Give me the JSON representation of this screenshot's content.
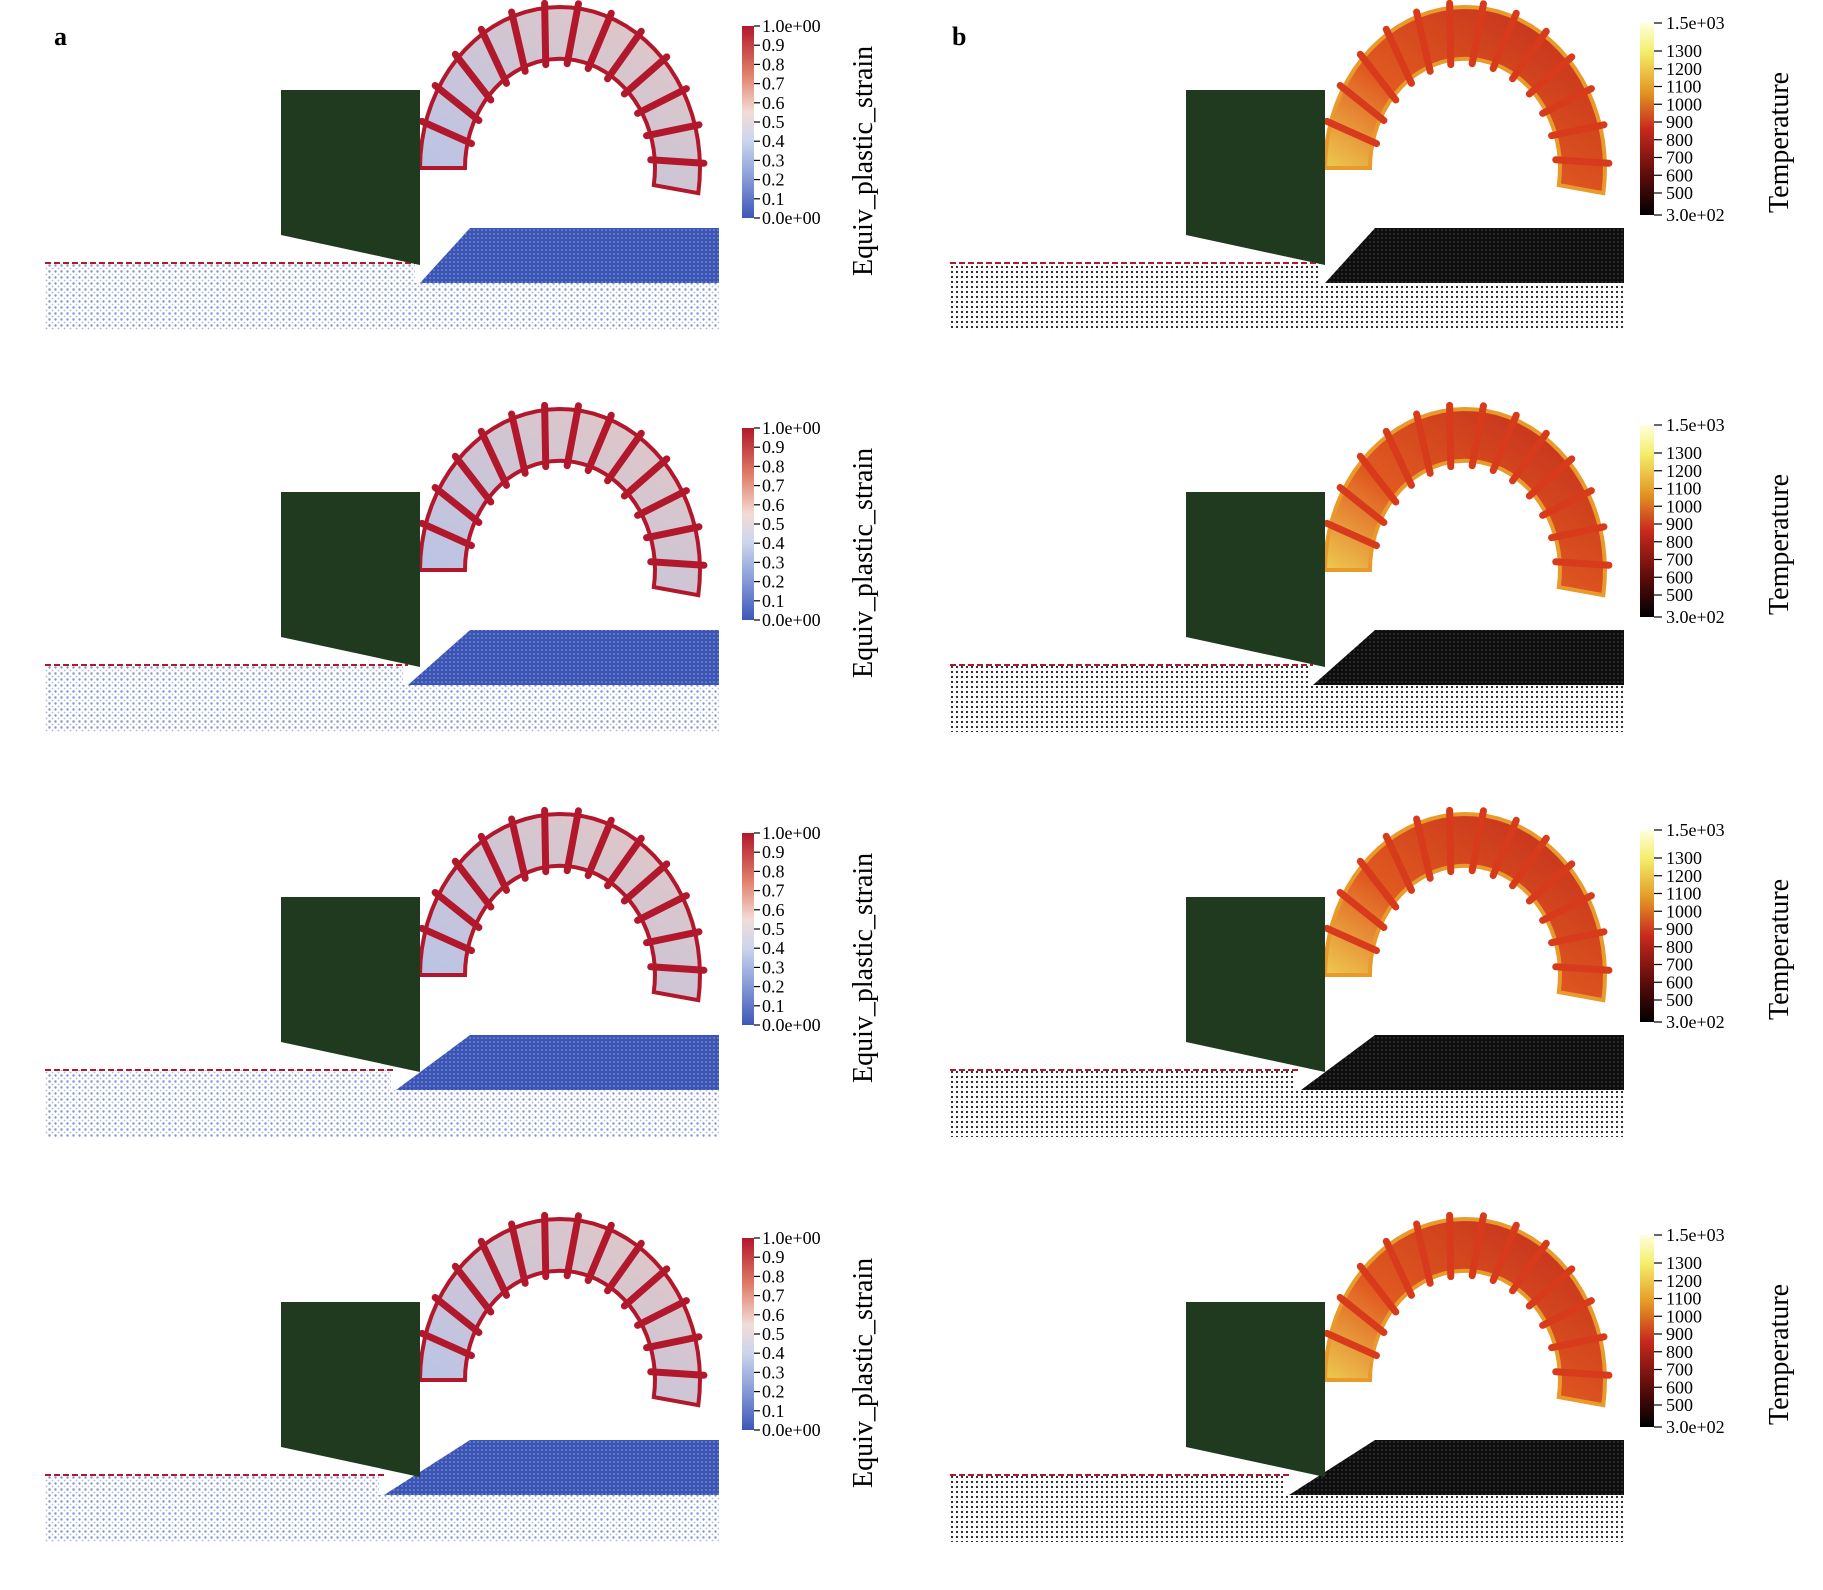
{
  "figure": {
    "panel_labels": [
      "a",
      "b"
    ],
    "strain_colorbar": {
      "title": "Equiv_plastic_strain",
      "ticks": [
        "1.0e+00",
        "0.9",
        "0.8",
        "0.7",
        "0.6",
        "0.5",
        "0.4",
        "0.3",
        "0.2",
        "0.1",
        "0.0e+00"
      ],
      "colors": [
        "#b2182b",
        "#d6604d",
        "#f4a582",
        "#f0d9d0",
        "#d1d9ec",
        "#92a8d9",
        "#4a64c0"
      ]
    },
    "temp_colorbar": {
      "title": "Temperature",
      "top_label": "1.5e+03",
      "bottom_label": "3.0e+02",
      "ticks": [
        "1300",
        "1200",
        "1100",
        "1000",
        "900",
        "800",
        "700",
        "600",
        "500"
      ],
      "colors": [
        "#ffffe0",
        "#f6f07a",
        "#e8b830",
        "#d86a1c",
        "#c02020",
        "#6a0d0d",
        "#000000"
      ]
    },
    "tool_color": "#1f3a1f",
    "workpiece_strain_color": "#3d57b8",
    "workpiece_temp_color": "#0f0f0f",
    "rows": 4
  }
}
